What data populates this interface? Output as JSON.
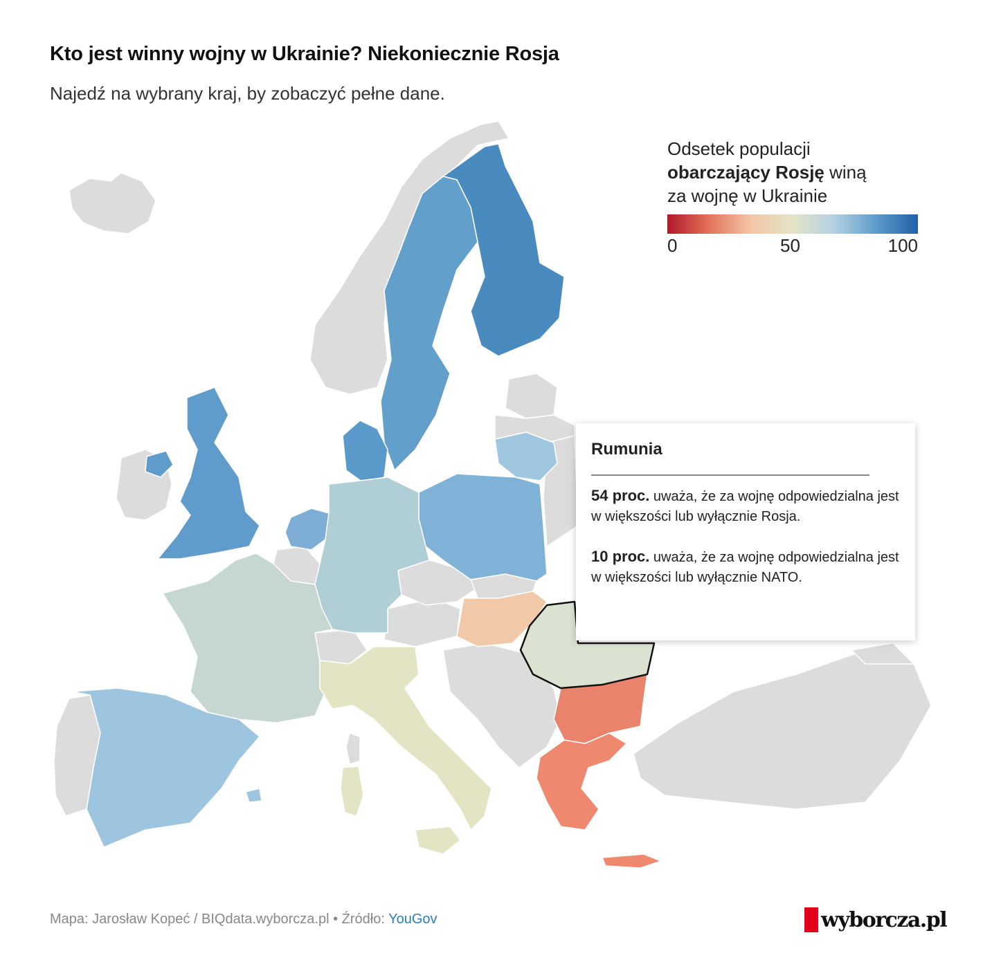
{
  "header": {
    "title": "Kto jest winny wojny w Ukrainie? Niekoniecznie Rosja",
    "subtitle": "Najedź na wybrany kraj, by zobaczyć pełne dane."
  },
  "legend": {
    "line1": "Odsetek populacji",
    "line2_bold": "obarczający Rosję",
    "line2_rest": " winą",
    "line3": "za wojnę w Ukrainie",
    "tick_min": "0",
    "tick_mid": "50",
    "tick_max": "100",
    "color_low": "#b2182b",
    "color_mid": "#e4e3c8",
    "color_high": "#1f5fa6"
  },
  "colors": {
    "no_data": "#dcdcdc",
    "sea": "#ffffff"
  },
  "countries": [
    {
      "id": "finland",
      "name": "Finlandia",
      "color": "#4a8bbf"
    },
    {
      "id": "sweden",
      "name": "Szwecja",
      "color": "#629fcb"
    },
    {
      "id": "denmark",
      "name": "Dania",
      "color": "#5a9acb"
    },
    {
      "id": "uk",
      "name": "Wielka Brytania",
      "color": "#5f9ccb"
    },
    {
      "id": "lithuania",
      "name": "Litwa",
      "color": "#a0c6e0"
    },
    {
      "id": "poland",
      "name": "Polska",
      "color": "#80b2d7"
    },
    {
      "id": "netherlands",
      "name": "Holandia",
      "color": "#7eaed6"
    },
    {
      "id": "germany",
      "name": "Niemcy",
      "color": "#b0ced6"
    },
    {
      "id": "france",
      "name": "Francja",
      "color": "#c6d6d0"
    },
    {
      "id": "spain",
      "name": "Hiszpania",
      "color": "#9ec5e0"
    },
    {
      "id": "italy",
      "name": "Włochy",
      "color": "#e2e4c3"
    },
    {
      "id": "hungary",
      "name": "Węgry",
      "color": "#f1c9a8"
    },
    {
      "id": "romania",
      "name": "Rumunia",
      "color": "#dbe2d2"
    },
    {
      "id": "bulgaria",
      "name": "Bułgaria",
      "color": "#e9836b"
    },
    {
      "id": "greece",
      "name": "Grecja",
      "color": "#ee8970"
    }
  ],
  "tooltip": {
    "country": "Rumunia",
    "p1_bold": "54 proc.",
    "p1_text": " uważa, że za wojnę odpowiedzialna jest w większości lub wyłącznie Rosja.",
    "p2_bold": "10 proc.",
    "p2_text": " uważa, że za wojnę odpowiedzialna jest w większości lub wyłącznie NATO."
  },
  "footer": {
    "credit": "Mapa: Jarosław Kopeć / BIQdata.wyborcza.pl • Źródło: ",
    "source_link": "YouGov"
  },
  "logo": {
    "text": "wyborcza.pl"
  }
}
